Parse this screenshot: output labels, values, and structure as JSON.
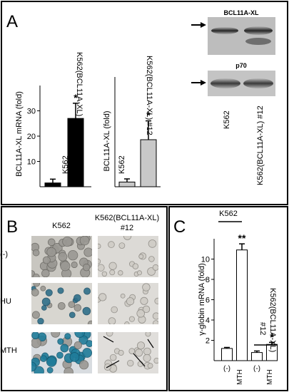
{
  "panel_a": {
    "letter": "A",
    "blot": {
      "bands": [
        {
          "label": "BCL11A-XL"
        },
        {
          "label": "p70"
        }
      ],
      "lanes": [
        "K562",
        "K562(BCL11A-XL) #12"
      ]
    }
  },
  "panel_b": {
    "letter": "B",
    "columns": [
      "K562",
      "K562(BCL11A-XL)",
      "#12"
    ],
    "rows": [
      "(-)",
      "HU",
      "MTH"
    ]
  },
  "panel_c": {
    "letter": "C",
    "group1_label": "K562",
    "group2_label_line1": "K562(BCL11A-XL)",
    "group2_label_line2": "#12"
  },
  "chart_data": [
    {
      "type": "bar",
      "id": "a-left",
      "ylabel": "BCL11A-XL mRNA (fold)",
      "categories": [
        "K562",
        "K562(BCL11A-XL) #12"
      ],
      "values": [
        1.5,
        27
      ],
      "errors": [
        1.5,
        6
      ],
      "ylim": [
        0,
        40
      ],
      "yticks": [
        10,
        20,
        30
      ],
      "significance": [
        "",
        "*"
      ]
    },
    {
      "type": "bar",
      "id": "a-mid",
      "ylabel": "BCL11A-XL (fold)",
      "categories": [
        "K562",
        "K562(BCL11A-XL) #12"
      ],
      "values": [
        1.5,
        15
      ],
      "errors": [
        1,
        6
      ],
      "ylim": [
        0,
        35
      ],
      "yticks": [],
      "significance": [
        "",
        "*"
      ]
    },
    {
      "type": "bar",
      "id": "c",
      "ylabel": "γ-globin mRNA (fold)",
      "categories": [
        "(-)",
        "MTH",
        "(-)",
        "MTH"
      ],
      "values": [
        1.2,
        10.9,
        0.8,
        1.6
      ],
      "errors": [
        0.1,
        0.6,
        0.15,
        0.2
      ],
      "ylim": [
        0,
        12
      ],
      "yticks": [
        2,
        4,
        6,
        8,
        10
      ],
      "significance": [
        "",
        "**",
        "",
        "*"
      ]
    }
  ]
}
